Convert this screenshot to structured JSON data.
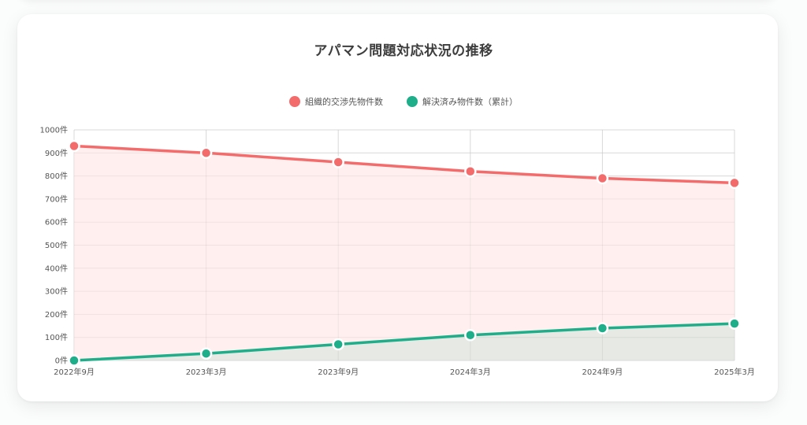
{
  "chart_data": {
    "type": "line",
    "title": "アパマン問題対応状況の推移",
    "categories": [
      "2022年9月",
      "2023年3月",
      "2023年9月",
      "2024年3月",
      "2024年9月",
      "2025年3月"
    ],
    "y_ticks": [
      "0件",
      "100件",
      "200件",
      "300件",
      "400件",
      "500件",
      "600件",
      "700件",
      "800件",
      "900件",
      "1000件"
    ],
    "ylim": [
      0,
      1000
    ],
    "grid": true,
    "legend_position": "top-center",
    "series": [
      {
        "name": "組織的交渉先物件数",
        "values": [
          930,
          900,
          860,
          820,
          790,
          770
        ],
        "color": "#f46b6b",
        "fill": "#fff0ef"
      },
      {
        "name": "解決済み物件数（累計）",
        "values": [
          0,
          30,
          70,
          110,
          140,
          160
        ],
        "color": "#1fae8a",
        "fill": "#e6e9e4"
      }
    ]
  }
}
